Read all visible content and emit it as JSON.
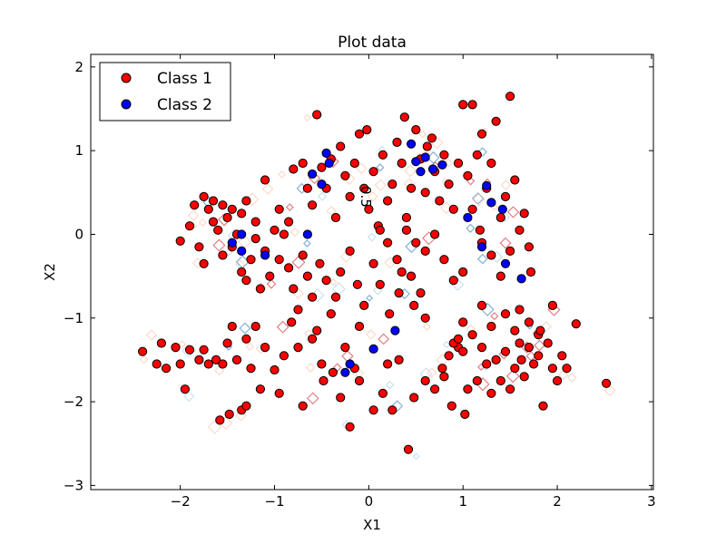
{
  "chart_data": {
    "type": "scatter",
    "title": "Plot data",
    "xlabel": "X1",
    "ylabel": "X2",
    "xlim": [
      -2.95,
      3.02
    ],
    "ylim": [
      -3.05,
      2.15
    ],
    "xticks": [
      -2,
      -1,
      0,
      1,
      2,
      3
    ],
    "yticks": [
      -3,
      -2,
      -1,
      0,
      1,
      2
    ],
    "xtick_labels": [
      "−2",
      "−1",
      "0",
      "1",
      "2",
      "3"
    ],
    "ytick_labels": [
      "−3",
      "−2",
      "−1",
      "0",
      "1",
      "2"
    ],
    "grid": false,
    "legend_position": "top-left",
    "contour_label": "0.5",
    "contour_label_pos": [
      -0.08,
      0.45
    ],
    "series": [
      {
        "name": "Class 1",
        "color": "#ff0000",
        "points": [
          [
            -2.4,
            -1.4
          ],
          [
            -2.25,
            -1.55
          ],
          [
            -2.2,
            -1.3
          ],
          [
            -2.15,
            -1.6
          ],
          [
            -2.05,
            -1.35
          ],
          [
            -2.0,
            -1.55
          ],
          [
            -1.95,
            -1.85
          ],
          [
            -1.9,
            -1.38
          ],
          [
            -1.8,
            -1.5
          ],
          [
            -1.75,
            -1.38
          ],
          [
            -1.7,
            -1.55
          ],
          [
            -1.62,
            -1.5
          ],
          [
            -1.58,
            -2.22
          ],
          [
            -1.55,
            -1.55
          ],
          [
            -1.5,
            -1.3
          ],
          [
            -1.45,
            -1.1
          ],
          [
            -1.48,
            -2.15
          ],
          [
            -1.4,
            -1.5
          ],
          [
            -1.35,
            -2.1
          ],
          [
            -1.3,
            -2.05
          ],
          [
            -1.3,
            -1.25
          ],
          [
            -1.25,
            -1.6
          ],
          [
            -1.2,
            -1.1
          ],
          [
            -1.15,
            -1.85
          ],
          [
            -1.1,
            -1.35
          ],
          [
            -1.0,
            -1.62
          ],
          [
            -0.95,
            -1.9
          ],
          [
            -0.9,
            -1.45
          ],
          [
            -0.82,
            -1.05
          ],
          [
            -0.75,
            -1.35
          ],
          [
            -0.7,
            -2.05
          ],
          [
            -0.6,
            -1.25
          ],
          [
            -0.5,
            -1.55
          ],
          [
            -0.48,
            -1.75
          ],
          [
            -0.38,
            -1.65
          ],
          [
            -0.3,
            -1.95
          ],
          [
            -0.2,
            -2.3
          ],
          [
            -0.15,
            -1.6
          ],
          [
            -0.1,
            -1.75
          ],
          [
            0.05,
            -2.1
          ],
          [
            0.15,
            -1.9
          ],
          [
            0.2,
            -1.55
          ],
          [
            0.25,
            -2.1
          ],
          [
            0.32,
            -1.5
          ],
          [
            0.42,
            -2.57
          ],
          [
            0.48,
            -1.95
          ],
          [
            0.6,
            -1.75
          ],
          [
            0.7,
            -1.85
          ],
          [
            0.78,
            -1.6
          ],
          [
            0.8,
            -1.7
          ],
          [
            0.85,
            -1.45
          ],
          [
            0.88,
            -2.05
          ],
          [
            0.95,
            -1.35
          ],
          [
            1.0,
            -1.4
          ],
          [
            1.02,
            -2.15
          ],
          [
            1.05,
            -1.85
          ],
          [
            1.15,
            -1.75
          ],
          [
            1.2,
            -1.35
          ],
          [
            1.25,
            -1.55
          ],
          [
            1.3,
            -1.9
          ],
          [
            1.35,
            -1.5
          ],
          [
            1.4,
            -1.75
          ],
          [
            1.45,
            -1.4
          ],
          [
            1.5,
            -1.85
          ],
          [
            1.55,
            -1.6
          ],
          [
            1.6,
            -1.3
          ],
          [
            1.62,
            -1.5
          ],
          [
            1.65,
            -1.7
          ],
          [
            1.7,
            -1.35
          ],
          [
            1.75,
            -1.55
          ],
          [
            1.8,
            -1.45
          ],
          [
            1.85,
            -2.05
          ],
          [
            1.9,
            -1.3
          ],
          [
            1.95,
            -1.6
          ],
          [
            2.0,
            -1.75
          ],
          [
            2.05,
            -1.45
          ],
          [
            2.1,
            -1.6
          ],
          [
            2.2,
            -1.07
          ],
          [
            2.52,
            -1.78
          ],
          [
            1.8,
            -1.2
          ],
          [
            1.7,
            -1.05
          ],
          [
            1.55,
            -1.15
          ],
          [
            1.45,
            -0.95
          ],
          [
            1.3,
            -1.1
          ],
          [
            1.2,
            -0.85
          ],
          [
            1.1,
            -1.2
          ],
          [
            1.0,
            -1.05
          ],
          [
            0.9,
            -1.3
          ],
          [
            0.6,
            -1.0
          ],
          [
            0.55,
            -0.7
          ],
          [
            0.45,
            -0.5
          ],
          [
            0.35,
            -0.45
          ],
          [
            0.32,
            -0.7
          ],
          [
            0.22,
            -0.95
          ],
          [
            0.12,
            -0.6
          ],
          [
            0.05,
            -0.35
          ],
          [
            -0.05,
            -0.85
          ],
          [
            -0.12,
            -0.6
          ],
          [
            -0.2,
            -0.2
          ],
          [
            -0.3,
            -0.45
          ],
          [
            -0.35,
            -0.75
          ],
          [
            -0.4,
            -0.95
          ],
          [
            -0.45,
            -0.55
          ],
          [
            -0.52,
            -0.35
          ],
          [
            -0.6,
            -0.75
          ],
          [
            -0.65,
            -0.5
          ],
          [
            -0.7,
            -0.25
          ],
          [
            -0.75,
            -0.9
          ],
          [
            -0.8,
            -0.65
          ],
          [
            -0.85,
            -0.4
          ],
          [
            -0.9,
            0.0
          ],
          [
            -0.95,
            -0.3
          ],
          [
            -1.05,
            -0.5
          ],
          [
            -1.1,
            -0.2
          ],
          [
            -1.15,
            -0.65
          ],
          [
            -1.2,
            -0.05
          ],
          [
            -1.25,
            -0.3
          ],
          [
            -1.3,
            -0.55
          ],
          [
            -1.35,
            -0.45
          ],
          [
            -1.4,
            0.0
          ],
          [
            -1.45,
            -0.15
          ],
          [
            -1.5,
            0.2
          ],
          [
            -1.55,
            -0.25
          ],
          [
            -1.6,
            0.05
          ],
          [
            -1.65,
            0.15
          ],
          [
            -1.7,
            0.3
          ],
          [
            -1.75,
            -0.35
          ],
          [
            -1.8,
            -0.15
          ],
          [
            -1.9,
            0.1
          ],
          [
            -2.0,
            -0.08
          ],
          [
            -1.85,
            0.35
          ],
          [
            -1.75,
            0.45
          ],
          [
            -1.65,
            0.4
          ],
          [
            -1.55,
            0.35
          ],
          [
            -1.45,
            0.3
          ],
          [
            -1.35,
            0.25
          ],
          [
            -1.3,
            0.4
          ],
          [
            -1.2,
            0.15
          ],
          [
            -1.1,
            0.65
          ],
          [
            -1.0,
            0.05
          ],
          [
            -0.95,
            0.3
          ],
          [
            -0.85,
            0.15
          ],
          [
            -0.8,
            0.78
          ],
          [
            -0.7,
            0.85
          ],
          [
            -0.65,
            0.55
          ],
          [
            -0.6,
            0.35
          ],
          [
            -0.55,
            1.43
          ],
          [
            -0.5,
            0.8
          ],
          [
            -0.45,
            0.55
          ],
          [
            -0.4,
            0.9
          ],
          [
            -0.35,
            0.2
          ],
          [
            -0.3,
            1.05
          ],
          [
            -0.25,
            0.7
          ],
          [
            -0.2,
            0.45
          ],
          [
            -0.15,
            0.85
          ],
          [
            -0.1,
            1.2
          ],
          [
            -0.05,
            0.55
          ],
          [
            0.0,
            0.3
          ],
          [
            0.05,
            0.75
          ],
          [
            0.1,
            0.1
          ],
          [
            0.15,
            0.95
          ],
          [
            0.2,
            0.4
          ],
          [
            0.25,
            0.6
          ],
          [
            0.3,
            1.1
          ],
          [
            0.35,
            0.85
          ],
          [
            0.4,
            0.2
          ],
          [
            0.45,
            0.55
          ],
          [
            0.5,
            1.25
          ],
          [
            0.55,
            0.9
          ],
          [
            0.6,
            0.5
          ],
          [
            0.62,
            1.05
          ],
          [
            0.7,
            0.75
          ],
          [
            0.75,
            0.4
          ],
          [
            0.8,
            0.95
          ],
          [
            0.85,
            0.6
          ],
          [
            0.9,
            0.3
          ],
          [
            0.95,
            0.85
          ],
          [
            1.0,
            1.55
          ],
          [
            1.05,
            0.7
          ],
          [
            1.1,
            1.55
          ],
          [
            1.15,
            0.95
          ],
          [
            1.2,
            1.2
          ],
          [
            1.25,
            0.55
          ],
          [
            1.3,
            0.85
          ],
          [
            1.35,
            1.35
          ],
          [
            1.4,
            0.2
          ],
          [
            1.45,
            0.45
          ],
          [
            1.5,
            1.65
          ],
          [
            1.55,
            0.65
          ],
          [
            1.6,
            0.05
          ],
          [
            1.65,
            0.25
          ],
          [
            1.7,
            -0.15
          ],
          [
            1.5,
            -0.2
          ],
          [
            1.4,
            -0.5
          ],
          [
            1.3,
            -0.25
          ],
          [
            1.2,
            -0.1
          ],
          [
            1.1,
            0.3
          ],
          [
            1.0,
            -0.45
          ],
          [
            0.9,
            -0.55
          ],
          [
            0.8,
            -0.3
          ],
          [
            0.7,
            0.0
          ],
          [
            0.6,
            -0.2
          ],
          [
            0.5,
            -0.1
          ],
          [
            0.4,
            0.05
          ],
          [
            0.3,
            -0.3
          ],
          [
            0.2,
            -0.1
          ],
          [
            1.95,
            -0.85
          ],
          [
            1.72,
            -0.45
          ],
          [
            1.82,
            -1.15
          ],
          [
            0.95,
            -1.25
          ],
          [
            -0.1,
            -1.1
          ],
          [
            -0.25,
            -1.35
          ],
          [
            -0.55,
            -1.15
          ],
          [
            -0.02,
            1.25
          ],
          [
            0.12,
            0.05
          ],
          [
            0.38,
            1.4
          ],
          [
            0.67,
            1.15
          ],
          [
            0.48,
            -0.85
          ],
          [
            1.18,
            0.05
          ],
          [
            1.6,
            -0.9
          ]
        ]
      },
      {
        "name": "Class 2",
        "color": "#0000ff",
        "points": [
          [
            -1.45,
            -0.1
          ],
          [
            -1.35,
            -0.2
          ],
          [
            -1.35,
            0.0
          ],
          [
            -1.1,
            -0.25
          ],
          [
            -0.65,
            0.0
          ],
          [
            -0.6,
            0.72
          ],
          [
            -0.5,
            0.6
          ],
          [
            -0.45,
            0.97
          ],
          [
            -0.42,
            0.85
          ],
          [
            -0.25,
            -1.65
          ],
          [
            -0.2,
            -1.55
          ],
          [
            0.05,
            -1.37
          ],
          [
            0.28,
            -1.15
          ],
          [
            0.45,
            1.08
          ],
          [
            0.5,
            0.87
          ],
          [
            0.55,
            0.75
          ],
          [
            0.6,
            0.92
          ],
          [
            0.68,
            0.78
          ],
          [
            0.78,
            0.83
          ],
          [
            1.05,
            0.2
          ],
          [
            1.25,
            0.58
          ],
          [
            1.3,
            0.38
          ],
          [
            1.45,
            -0.35
          ],
          [
            1.62,
            -0.53
          ],
          [
            1.42,
            0.3
          ],
          [
            1.2,
            -0.15
          ]
        ]
      }
    ]
  }
}
